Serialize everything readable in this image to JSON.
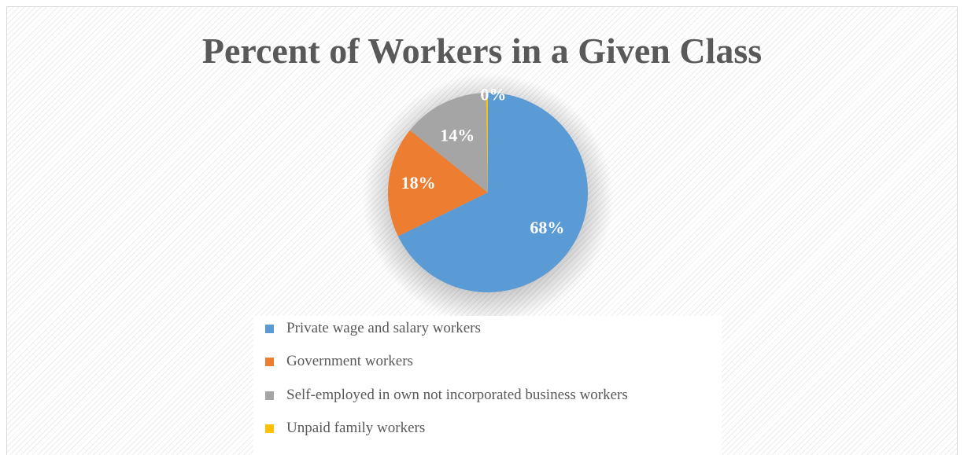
{
  "chart_data": {
    "type": "pie",
    "title": "Percent of Workers in a Given Class",
    "slices": [
      {
        "name": "Private wage and salary workers",
        "value": 68,
        "label": "68%",
        "color": "#5b9bd5"
      },
      {
        "name": "Government workers",
        "value": 18,
        "label": "18%",
        "color": "#ed7d31"
      },
      {
        "name": "Self-employed in own not incorporated business workers",
        "value": 14,
        "label": "14%",
        "color": "#a5a5a5"
      },
      {
        "name": "Unpaid family workers",
        "value": 0.3,
        "label": "0%",
        "color": "#ffc000"
      }
    ],
    "legend_position": "bottom"
  }
}
